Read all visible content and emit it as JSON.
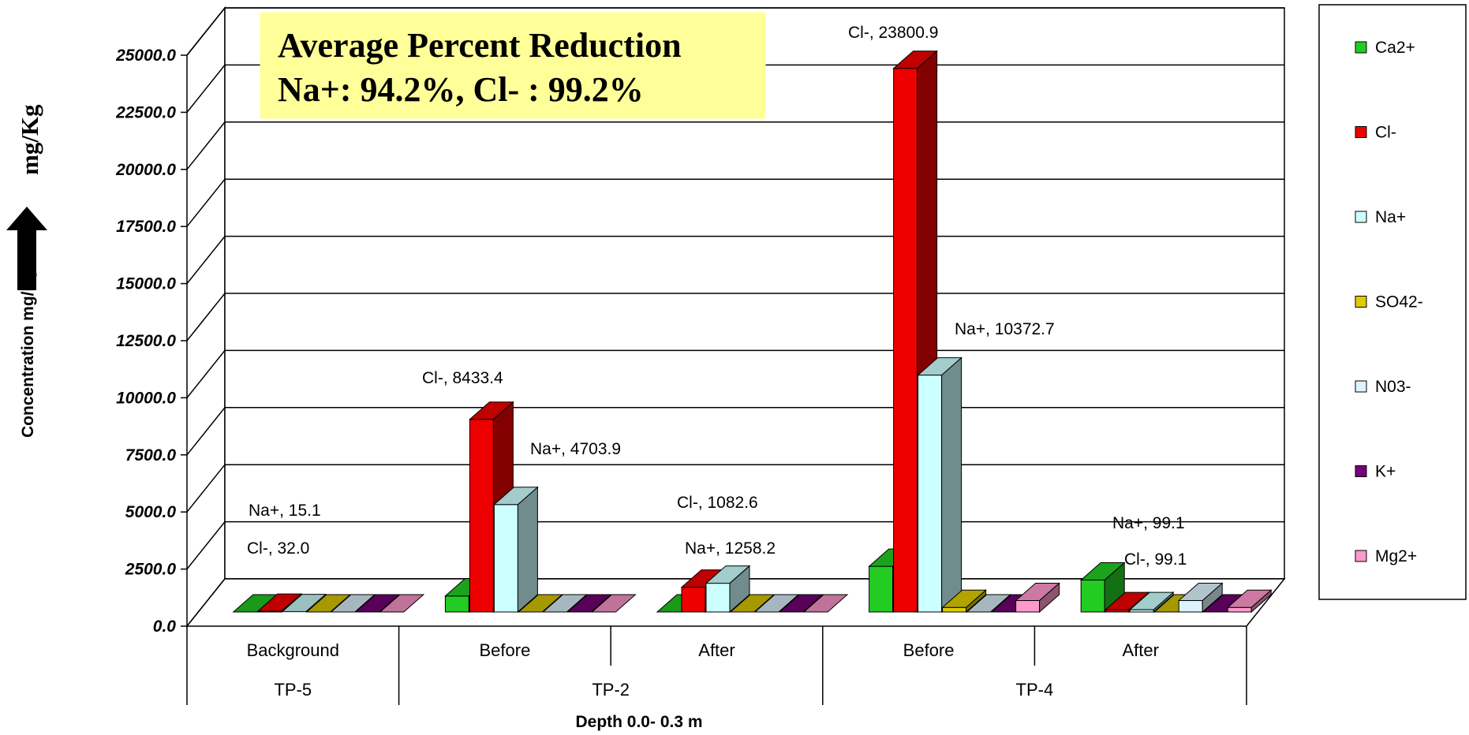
{
  "chart_data": {
    "type": "bar",
    "xlabel": "Depth 0.0- 0.3 m",
    "ylabel": "Concentration mg/Kg",
    "unit_label": "mg/Kg",
    "callout": {
      "line1": "Average Percent Reduction",
      "line2": "Na+: 94.2%,  Cl- : 99.2%"
    },
    "ylim": [
      0,
      25000
    ],
    "y_ticks": [
      "0.0",
      "2500.0",
      "5000.0",
      "7500.0",
      "10000.0",
      "12500.0",
      "15000.0",
      "17500.0",
      "20000.0",
      "22500.0",
      "25000.0"
    ],
    "y_tick_values": [
      0,
      2500,
      5000,
      7500,
      10000,
      12500,
      15000,
      17500,
      20000,
      22500,
      25000
    ],
    "grid": true,
    "legend_position": "right",
    "categories": [
      "Background",
      "Before",
      "After",
      "Before",
      "After"
    ],
    "groups": [
      {
        "label": "TP-5",
        "span": 1
      },
      {
        "label": "TP-2",
        "span": 2
      },
      {
        "label": "TP-4",
        "span": 2
      }
    ],
    "series": [
      {
        "name": "Ca2+",
        "color": "#22cc22",
        "values": [
          0,
          700,
          0,
          2000,
          1400
        ]
      },
      {
        "name": "Cl-",
        "color": "#ee0000",
        "values": [
          32.0,
          8433.4,
          1082.6,
          23800.9,
          99.1
        ]
      },
      {
        "name": "Na+",
        "color": "#ccffff",
        "values": [
          15.1,
          4703.9,
          1258.2,
          10372.7,
          99.1
        ]
      },
      {
        "name": "SO42-",
        "color": "#ddcc00",
        "values": [
          0,
          0,
          0,
          200,
          0
        ]
      },
      {
        "name": "N03-",
        "color": "#ddf4ff",
        "values": [
          0,
          0,
          0,
          0,
          500
        ]
      },
      {
        "name": "K+",
        "color": "#770077",
        "values": [
          0,
          0,
          0,
          0,
          0
        ]
      },
      {
        "name": "Mg2+",
        "color": "#ff99cc",
        "values": [
          0,
          0,
          0,
          500,
          200
        ]
      }
    ],
    "data_labels": [
      {
        "text": "Na+, 15.1"
      },
      {
        "text": "Cl-, 32.0"
      },
      {
        "text": "Cl-, 8433.4"
      },
      {
        "text": "Na+, 4703.9"
      },
      {
        "text": "Cl-, 1082.6"
      },
      {
        "text": "Na+, 1258.2"
      },
      {
        "text": "Cl-, 23800.9"
      },
      {
        "text": "Na+, 10372.7"
      },
      {
        "text": "Na+, 99.1"
      },
      {
        "text": "Cl-, 99.1"
      }
    ]
  }
}
